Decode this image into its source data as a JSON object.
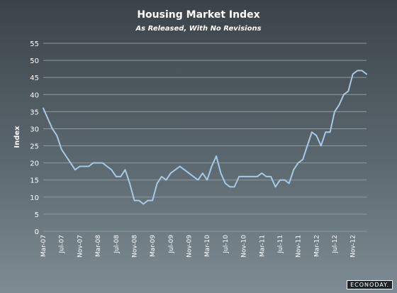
{
  "brand": {
    "logo_text": "ECONODAY."
  },
  "chart_data": {
    "type": "line",
    "title": "Housing Market Index",
    "subtitle": "As Released, With No Revisions",
    "xlabel": "",
    "ylabel": "Index",
    "ylim": [
      0,
      55
    ],
    "yticks": [
      0,
      5,
      10,
      15,
      20,
      25,
      30,
      35,
      40,
      45,
      50,
      55
    ],
    "grid": true,
    "x_tick_labels": [
      "Mar-07",
      "Jul-07",
      "Nov-07",
      "Mar-08",
      "Jul-08",
      "Nov-08",
      "Mar-09",
      "Jul-09",
      "Nov-09",
      "Mar-10",
      "Jul-10",
      "Nov-10",
      "Mar-11",
      "Jul-11",
      "Nov-11",
      "Mar-12",
      "Jul-12",
      "Nov-12"
    ],
    "line_color": "#a9c8e4",
    "series": [
      {
        "x": [
          "Mar-07",
          "Apr-07",
          "May-07",
          "Jun-07",
          "Jul-07",
          "Aug-07",
          "Sep-07",
          "Oct-07",
          "Nov-07",
          "Dec-07",
          "Jan-08",
          "Feb-08",
          "Mar-08",
          "Apr-08",
          "May-08",
          "Jun-08",
          "Jul-08",
          "Aug-08",
          "Sep-08",
          "Oct-08",
          "Nov-08",
          "Dec-08",
          "Jan-09",
          "Feb-09",
          "Mar-09",
          "Apr-09",
          "May-09",
          "Jun-09",
          "Jul-09",
          "Aug-09",
          "Sep-09",
          "Oct-09",
          "Nov-09",
          "Dec-09",
          "Jan-10",
          "Feb-10",
          "Mar-10",
          "Apr-10",
          "May-10",
          "Jun-10",
          "Jul-10",
          "Aug-10",
          "Sep-10",
          "Oct-10",
          "Nov-10",
          "Dec-10",
          "Jan-11",
          "Feb-11",
          "Mar-11",
          "Apr-11",
          "May-11",
          "Jun-11",
          "Jul-11",
          "Aug-11",
          "Sep-11",
          "Oct-11",
          "Nov-11",
          "Dec-11",
          "Jan-12",
          "Feb-12",
          "Mar-12",
          "Apr-12",
          "May-12",
          "Jun-12",
          "Jul-12",
          "Aug-12",
          "Sep-12",
          "Oct-12",
          "Nov-12",
          "Dec-12",
          "Jan-13",
          "Feb-13"
        ],
        "values": [
          36,
          33,
          30,
          28,
          24,
          22,
          20,
          18,
          19,
          19,
          19,
          20,
          20,
          20,
          19,
          18,
          16,
          16,
          18,
          14,
          9,
          9,
          8,
          9,
          9,
          14,
          16,
          15,
          17,
          18,
          19,
          18,
          17,
          16,
          15,
          17,
          15,
          19,
          22,
          17,
          14,
          13,
          13,
          16,
          16,
          16,
          16,
          16,
          17,
          16,
          16,
          13,
          15,
          15,
          14,
          18,
          20,
          21,
          25,
          29,
          28,
          25,
          29,
          29,
          35,
          37,
          40,
          41,
          46,
          47,
          47,
          46
        ]
      }
    ]
  }
}
